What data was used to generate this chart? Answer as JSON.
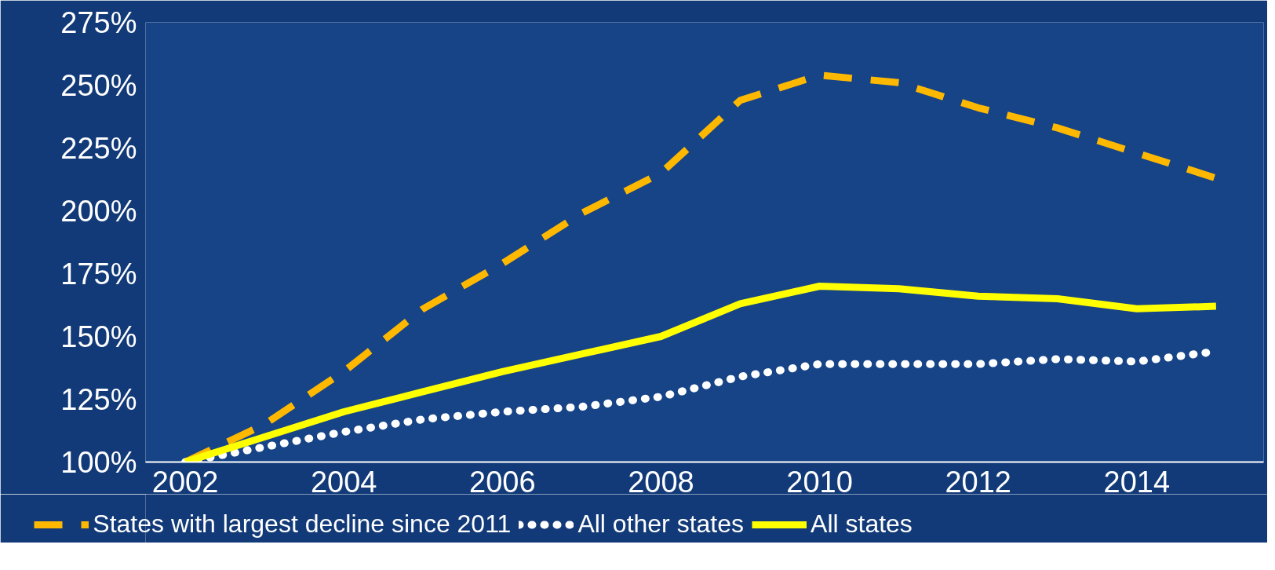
{
  "chart_data": {
    "type": "line",
    "x": [
      2002,
      2003,
      2004,
      2005,
      2006,
      2007,
      2008,
      2009,
      2010,
      2011,
      2012,
      2013,
      2014,
      2015
    ],
    "series": [
      {
        "name": "States with largest decline since 2011",
        "color": "#ffb800",
        "line_style": "dashed",
        "values": [
          100,
          115,
          136,
          161,
          179,
          199,
          215,
          244,
          254,
          251,
          241,
          233,
          223,
          213
        ]
      },
      {
        "name": "All other states",
        "color": "#ffffff",
        "line_style": "dotted",
        "values": [
          100,
          106,
          112,
          117,
          120,
          122,
          126,
          134,
          139,
          139,
          139,
          141,
          140,
          144
        ]
      },
      {
        "name": "All states",
        "color": "#ffff00",
        "line_style": "solid",
        "values": [
          100,
          110,
          120,
          128,
          136,
          143,
          150,
          163,
          170,
          169,
          166,
          165,
          161,
          162
        ]
      }
    ],
    "xlim": [
      2001.5,
      2015.6
    ],
    "ylim": [
      100,
      275
    ],
    "xticks": [
      2002,
      2004,
      2006,
      2008,
      2010,
      2012,
      2014
    ],
    "yticks": [
      {
        "value": 100,
        "label": "100%"
      },
      {
        "value": 125,
        "label": "125%"
      },
      {
        "value": 150,
        "label": "150%"
      },
      {
        "value": 175,
        "label": "175%"
      },
      {
        "value": 200,
        "label": "200%"
      },
      {
        "value": 225,
        "label": "225%"
      },
      {
        "value": 250,
        "label": "250%"
      },
      {
        "value": 275,
        "label": "275%"
      }
    ],
    "grid": false,
    "legend": "bottom"
  }
}
